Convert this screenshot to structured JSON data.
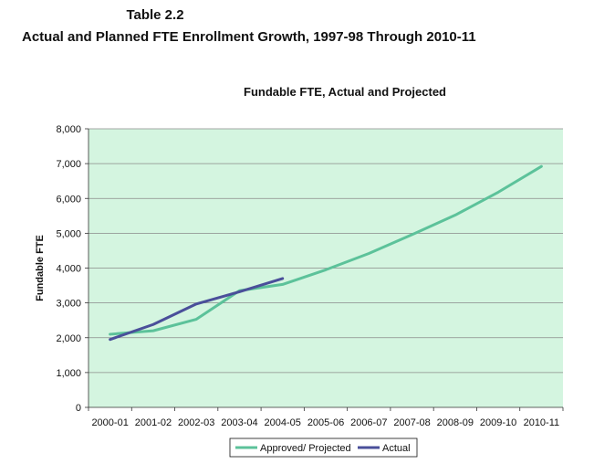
{
  "document": {
    "title": "Table 2.2",
    "subtitle": "Actual and Planned FTE Enrollment Growth, 1997-98 Through 2010-11"
  },
  "colors": {
    "plot_background": "#d4f5e0",
    "gridline": "#8a8a8a",
    "approved_projected": "#5cc29a",
    "actual": "#4a4f9a"
  },
  "chart_data": {
    "type": "line",
    "title": "Fundable FTE, Actual and Projected",
    "xlabel": "",
    "ylabel": "Fundable FTE",
    "categories": [
      "2000-01",
      "2001-02",
      "2002-03",
      "2003-04",
      "2004-05",
      "2005-06",
      "2006-07",
      "2007-08",
      "2008-09",
      "2009-10",
      "2010-11"
    ],
    "ylim": [
      0,
      8000
    ],
    "yticks": [
      0,
      1000,
      2000,
      3000,
      4000,
      5000,
      6000,
      7000,
      8000
    ],
    "ytick_labels": [
      "0",
      "1,000",
      "2,000",
      "3,000",
      "4,000",
      "5,000",
      "6,000",
      "7,000",
      "8,000"
    ],
    "grid": true,
    "legend_position": "bottom",
    "series": [
      {
        "name": "Approved/ Projected",
        "values": [
          2100,
          2200,
          2530,
          3350,
          3530,
          3950,
          4420,
          4960,
          5520,
          6180,
          6920
        ]
      },
      {
        "name": "Actual",
        "values": [
          1950,
          2380,
          2970,
          3320,
          3700,
          null,
          null,
          null,
          null,
          null,
          null
        ]
      }
    ]
  }
}
